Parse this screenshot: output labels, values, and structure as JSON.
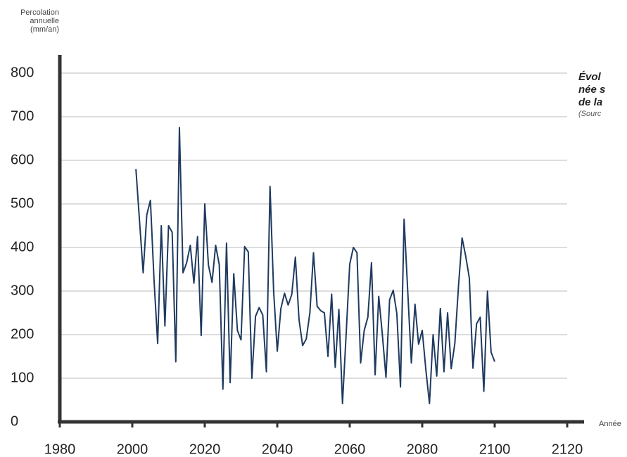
{
  "chart_data": {
    "type": "line",
    "y_label": [
      "Percolation",
      "annuelle",
      "(mm/an)"
    ],
    "x_label": "Année",
    "title": [
      "Évol",
      "née s",
      "de la"
    ],
    "source": "(Sourc",
    "x": [
      2001,
      2002,
      2003,
      2004,
      2005,
      2006,
      2007,
      2008,
      2009,
      2010,
      2011,
      2012,
      2013,
      2014,
      2015,
      2016,
      2017,
      2018,
      2019,
      2020,
      2021,
      2022,
      2023,
      2024,
      2025,
      2026,
      2027,
      2028,
      2029,
      2030,
      2031,
      2032,
      2033,
      2034,
      2035,
      2036,
      2037,
      2038,
      2039,
      2040,
      2041,
      2042,
      2043,
      2044,
      2045,
      2046,
      2047,
      2048,
      2049,
      2050,
      2051,
      2052,
      2053,
      2054,
      2055,
      2056,
      2057,
      2058,
      2059,
      2060,
      2061,
      2062,
      2063,
      2064,
      2065,
      2066,
      2067,
      2068,
      2069,
      2070,
      2071,
      2072,
      2073,
      2074,
      2075,
      2076,
      2077,
      2078,
      2079,
      2080,
      2081,
      2082,
      2083,
      2084,
      2085,
      2086,
      2087,
      2088,
      2089,
      2090,
      2091,
      2092,
      2093,
      2094,
      2095,
      2096,
      2097,
      2098,
      2099,
      2100
    ],
    "series": [
      {
        "name": "Percolation annuelle",
        "color": "#1f3a5f",
        "values": [
          580,
          460,
          342,
          475,
          508,
          325,
          180,
          450,
          220,
          450,
          435,
          138,
          675,
          342,
          365,
          405,
          318,
          425,
          198,
          500,
          360,
          320,
          405,
          360,
          75,
          410,
          90,
          340,
          210,
          188,
          402,
          390,
          100,
          242,
          262,
          245,
          115,
          540,
          300,
          162,
          260,
          295,
          268,
          292,
          378,
          235,
          175,
          190,
          250,
          388,
          265,
          255,
          250,
          150,
          293,
          125,
          258,
          42,
          200,
          362,
          400,
          388,
          135,
          210,
          240,
          365,
          108,
          288,
          200,
          102,
          280,
          302,
          248,
          80,
          465,
          300,
          135,
          270,
          178,
          210,
          120,
          42,
          200,
          105,
          260,
          115,
          250,
          122,
          180,
          310,
          422,
          380,
          330,
          123,
          225,
          240,
          70,
          300,
          160,
          138
        ]
      }
    ],
    "xlim": [
      1980,
      2120
    ],
    "xticks": [
      1980,
      2000,
      2020,
      2040,
      2060,
      2080,
      2100,
      2120
    ],
    "ylim": [
      0,
      800
    ],
    "yticks": [
      0,
      100,
      200,
      300,
      400,
      500,
      600,
      700,
      800
    ],
    "grid": true
  }
}
